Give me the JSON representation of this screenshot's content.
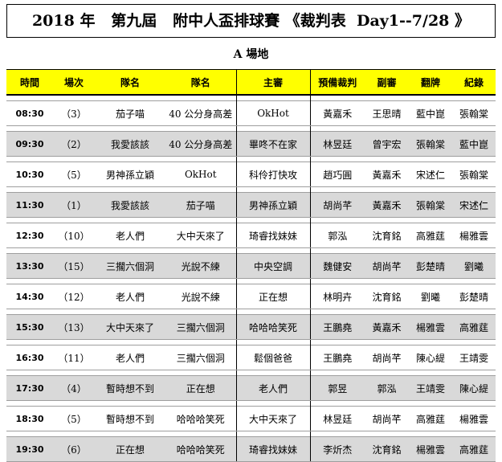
{
  "header": {
    "title": "2018 年   第九屆   附中人盃排球賽 《裁判表  Day1--7/28 》",
    "subtitle": "A 場地"
  },
  "table": {
    "columns": [
      "時間",
      "場次",
      "隊名",
      "隊名",
      "主審",
      "預備裁判",
      "副審",
      "翻牌",
      "紀錄"
    ],
    "rows": [
      {
        "time": "08:30",
        "match": "（3）",
        "team1": "茄子喵",
        "team2": "40 公分身高差",
        "referee": "OkHot",
        "standby": "黃嘉禾",
        "assistant": "王思晴",
        "flip": "藍中崑",
        "record": "張翰棠"
      },
      {
        "time": "09:30",
        "match": "（2）",
        "team1": "我愛該該",
        "team2": "40 公分身高差",
        "referee": "畢咚不在家",
        "standby": "林昱廷",
        "assistant": "曾宇宏",
        "flip": "張翰棠",
        "record": "藍中崑"
      },
      {
        "time": "10:30",
        "match": "（5）",
        "team1": "男神孫立穎",
        "team2": "OkHot",
        "referee": "科伶打快攻",
        "standby": "趙巧圓",
        "assistant": "黃嘉禾",
        "flip": "宋述仁",
        "record": "張翰棠"
      },
      {
        "time": "11:30",
        "match": "（1）",
        "team1": "我愛該該",
        "team2": "茄子喵",
        "referee": "男神孫立穎",
        "standby": "胡尚芊",
        "assistant": "黃嘉禾",
        "flip": "張翰棠",
        "record": "宋述仁"
      },
      {
        "time": "12:30",
        "match": "（10）",
        "team1": "老人們",
        "team2": "大中天來了",
        "referee": "琦睿找妹妹",
        "standby": "郭泓",
        "assistant": "沈育銘",
        "flip": "高雅莛",
        "record": "楊雅雲"
      },
      {
        "time": "13:30",
        "match": "（15）",
        "team1": "三擱六個洞",
        "team2": "光說不練",
        "referee": "中央空調",
        "standby": "魏健安",
        "assistant": "胡尚芊",
        "flip": "彭楚晴",
        "record": "劉曦"
      },
      {
        "time": "14:30",
        "match": "（12）",
        "team1": "老人們",
        "team2": "光說不練",
        "referee": "正在想",
        "standby": "林明卉",
        "assistant": "沈育銘",
        "flip": "劉曦",
        "record": "彭楚晴"
      },
      {
        "time": "15:30",
        "match": "（13）",
        "team1": "大中天來了",
        "team2": "三擱六個洞",
        "referee": "哈哈哈笑死",
        "standby": "王鵬堯",
        "assistant": "黃嘉禾",
        "flip": "楊雅雲",
        "record": "高雅莛"
      },
      {
        "time": "16:30",
        "match": "（11）",
        "team1": "老人們",
        "team2": "三擱六個洞",
        "referee": "鬆個爸爸",
        "standby": "王鵬堯",
        "assistant": "胡尚芊",
        "flip": "陳心緹",
        "record": "王靖雯"
      },
      {
        "time": "17:30",
        "match": "（4）",
        "team1": "暫時想不到",
        "team2": "正在想",
        "referee": "老人們",
        "standby": "郭昱",
        "assistant": "郭泓",
        "flip": "王靖雯",
        "record": "陳心緹"
      },
      {
        "time": "18:30",
        "match": "（5）",
        "team1": "暫時想不到",
        "team2": "哈哈哈笑死",
        "referee": "大中天來了",
        "standby": "林昱廷",
        "assistant": "胡尚芊",
        "flip": "高雅莛",
        "record": "楊雅雲"
      },
      {
        "time": "19:30",
        "match": "（6）",
        "team1": "正在想",
        "team2": "哈哈哈笑死",
        "referee": "琦睿找妹妹",
        "standby": "李炘杰",
        "assistant": "沈育銘",
        "flip": "楊雅雲",
        "record": "高雅莛"
      }
    ]
  }
}
